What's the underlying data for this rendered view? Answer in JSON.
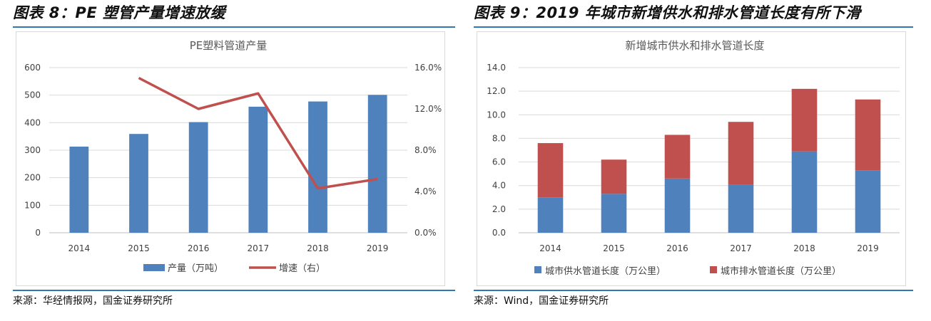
{
  "colors": {
    "rule": "#2e78b7",
    "blue": "#4f81bd",
    "red": "#c0504d",
    "grid": "#d9d9d9",
    "axis_text": "#404040"
  },
  "left": {
    "figure_title": "图表 8：PE 塑管产量增速放缓",
    "source": "来源：华经情报网，国金证券研究所"
  },
  "right": {
    "figure_title": "图表 9：2019 年城市新增供水和排水管道长度有所下滑",
    "source": "来源：Wind，国金证券研究所"
  },
  "chart_data": [
    {
      "type": "bar",
      "title": "PE塑料管道产量",
      "categories": [
        "2014",
        "2015",
        "2016",
        "2017",
        "2018",
        "2019"
      ],
      "series": [
        {
          "name": "产量（万吨）",
          "type": "bar",
          "axis": "left",
          "color": "#4f81bd",
          "values": [
            313,
            359,
            402,
            458,
            477,
            501
          ]
        },
        {
          "name": "增速（右）",
          "type": "line",
          "axis": "right",
          "color": "#c0504d",
          "values": [
            null,
            15.0,
            12.0,
            13.5,
            4.3,
            5.2
          ]
        }
      ],
      "ylim": [
        0,
        600
      ],
      "yticks": [
        "0",
        "100",
        "200",
        "300",
        "400",
        "500",
        "600"
      ],
      "y2lim": [
        0,
        16
      ],
      "y2ticks": [
        "0.0%",
        "4.0%",
        "8.0%",
        "12.0%",
        "16.0%"
      ],
      "grid": true,
      "legend_position": "bottom"
    },
    {
      "type": "bar",
      "stacked": true,
      "title": "新增城市供水和排水管道长度",
      "categories": [
        "2014",
        "2015",
        "2016",
        "2017",
        "2018",
        "2019"
      ],
      "series": [
        {
          "name": "城市供水管道长度（万公里）",
          "color": "#4f81bd",
          "values": [
            3.0,
            3.3,
            4.6,
            4.1,
            6.9,
            5.3
          ]
        },
        {
          "name": "城市排水管道长度（万公里）",
          "color": "#c0504d",
          "values": [
            4.6,
            2.9,
            3.7,
            5.3,
            5.3,
            6.0
          ]
        }
      ],
      "ylim": [
        0,
        14
      ],
      "yticks": [
        "0.0",
        "2.0",
        "4.0",
        "6.0",
        "8.0",
        "10.0",
        "12.0",
        "14.0"
      ],
      "grid": true,
      "legend_position": "bottom"
    }
  ]
}
